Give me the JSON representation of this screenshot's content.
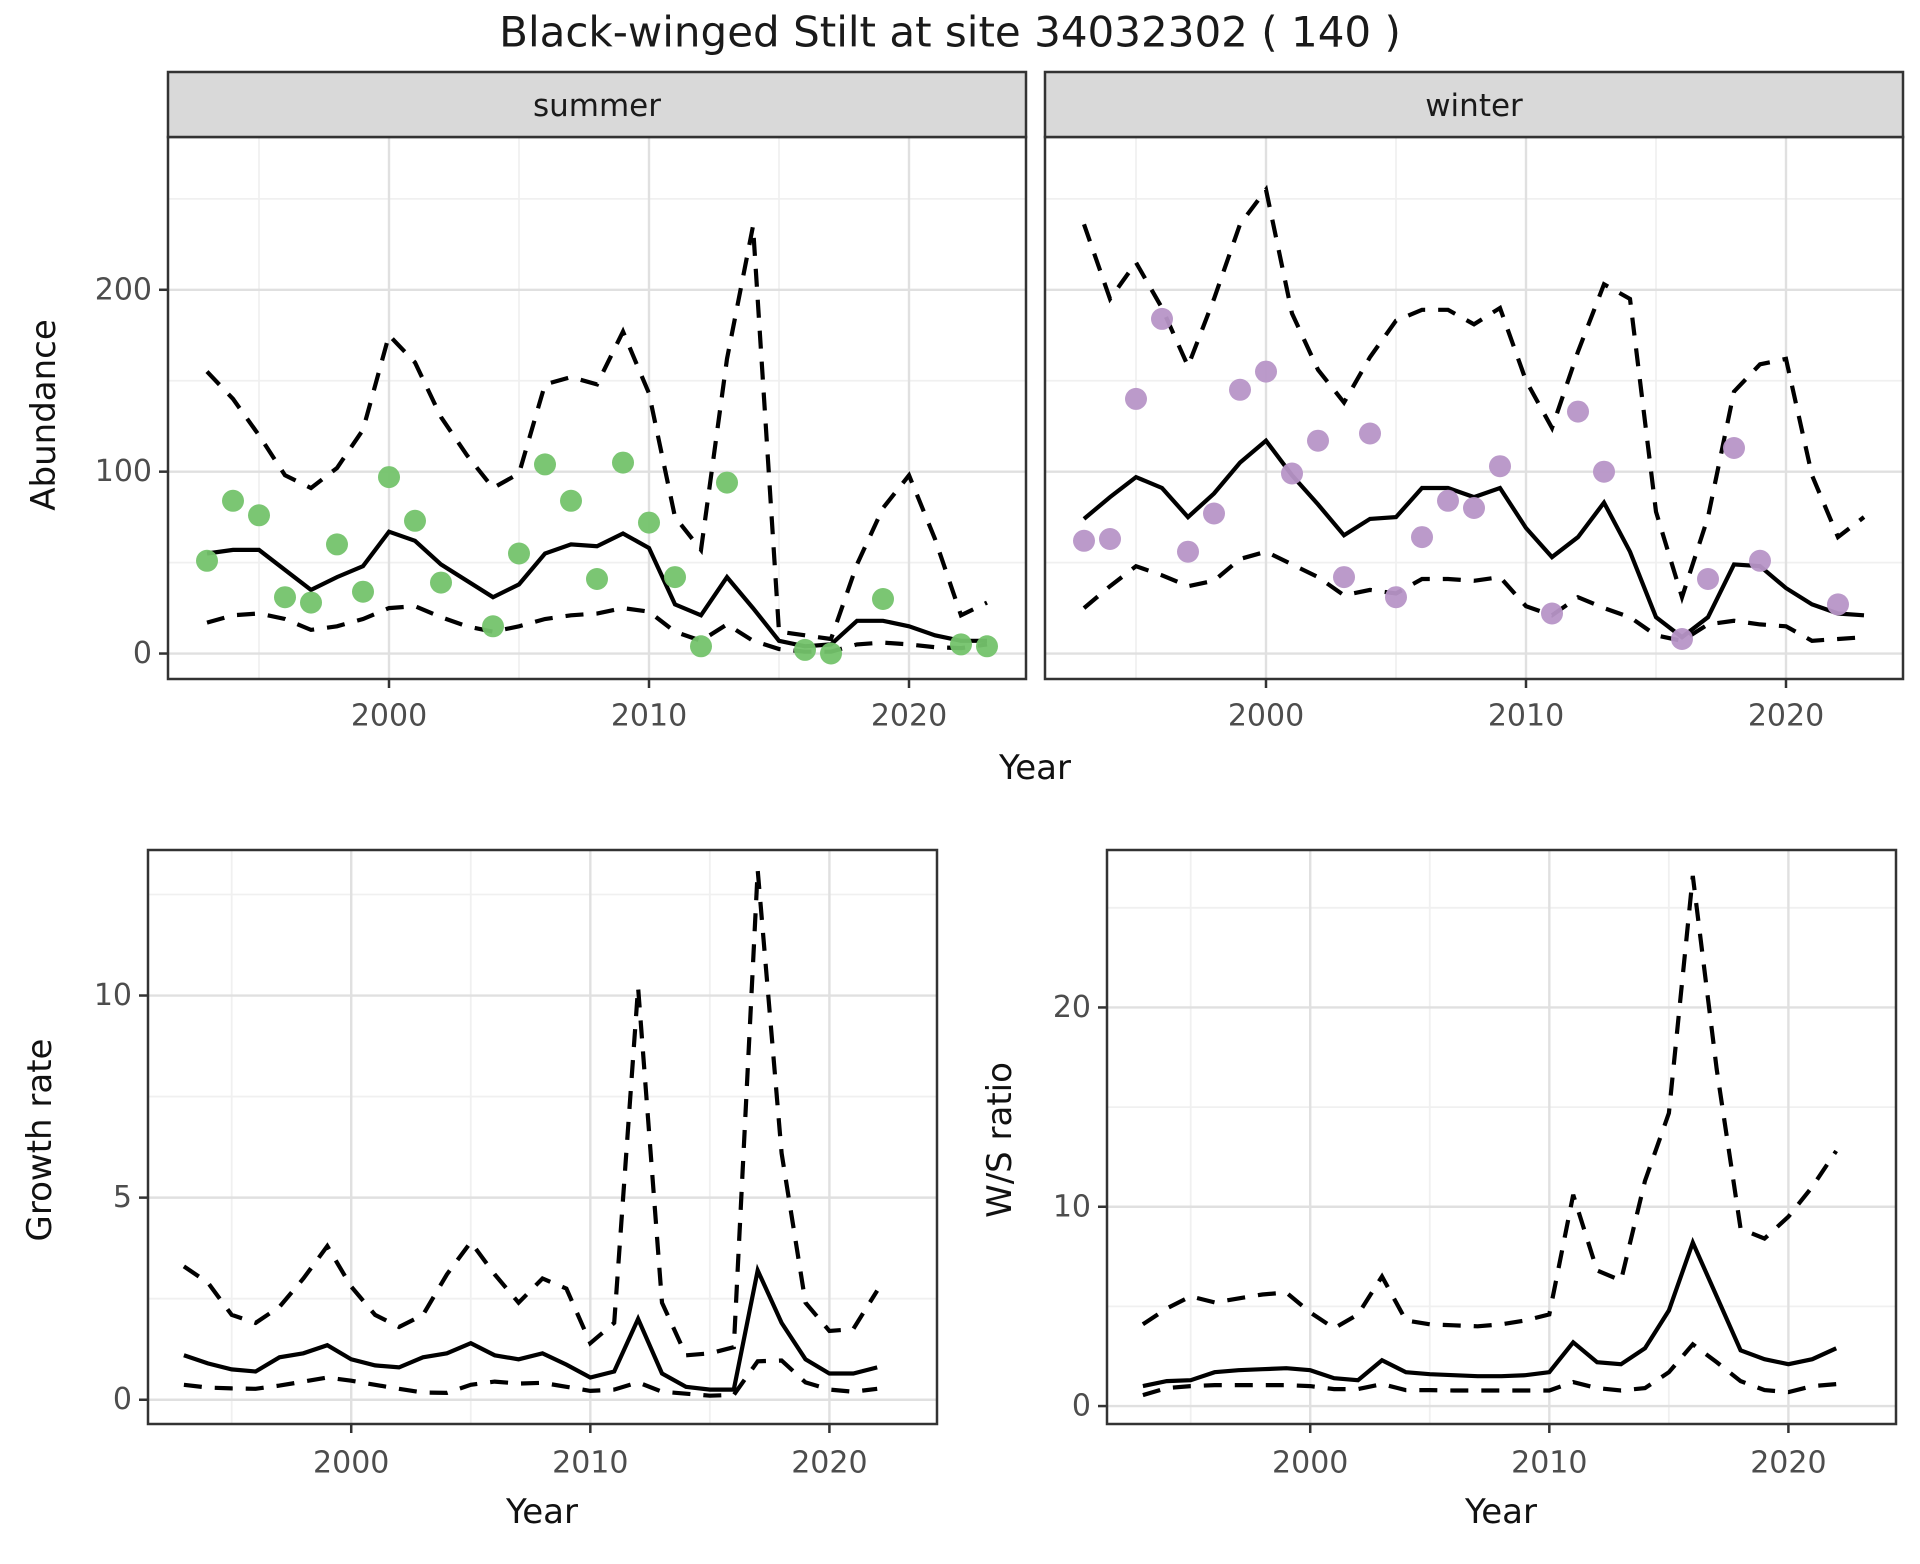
{
  "title": "Black-winged Stilt at site 34032302 ( 140 )",
  "axis_titles": {
    "x": "Year",
    "abundance": "Abundance",
    "growth": "Growth rate",
    "ratio": "W/S ratio"
  },
  "facets": {
    "summer": "summer",
    "winter": "winter"
  },
  "tick_labels": {
    "x": [
      "2000",
      "2010",
      "2020"
    ],
    "abundance": [
      "0",
      "100",
      "200"
    ],
    "growth": [
      "0",
      "5",
      "10"
    ],
    "ratio": [
      "0",
      "10",
      "20"
    ]
  },
  "colors": {
    "summer_points": "#74c36c",
    "winter_points": "#b795c7",
    "line": "#000000",
    "strip_bg": "#d9d9d9",
    "panel_border": "#333333",
    "grid_major": "#e0e0e0",
    "grid_minor": "#f0f0f0",
    "tick_label": "#4d4d4d",
    "background": "#ffffff"
  },
  "chart_data": [
    {
      "type": "line",
      "facet": "summer",
      "xlabel": "Year",
      "ylabel": "Abundance",
      "xlim": [
        1991.5,
        2024.5
      ],
      "ylim": [
        -14,
        284
      ],
      "x_major_ticks": [
        2000,
        2010,
        2020
      ],
      "x_minor_ticks": [
        1995,
        2005,
        2015
      ],
      "y_major_ticks": [
        0,
        100,
        200
      ],
      "y_minor_ticks": [
        50,
        150,
        250
      ],
      "grid": true,
      "legend": "none",
      "years": [
        1993,
        1994,
        1995,
        1996,
        1997,
        1998,
        1999,
        2000,
        2001,
        2002,
        2003,
        2004,
        2005,
        2006,
        2007,
        2008,
        2009,
        2010,
        2011,
        2012,
        2013,
        2014,
        2015,
        2016,
        2017,
        2018,
        2019,
        2020,
        2021,
        2022,
        2023
      ],
      "series": [
        {
          "name": "mean",
          "style": "solid",
          "values": [
            55,
            57,
            57,
            46,
            35,
            42,
            48,
            67,
            62,
            49,
            40,
            31,
            38,
            55,
            60,
            59,
            66,
            58,
            27,
            21,
            42,
            25,
            7,
            4,
            5,
            18,
            18,
            15,
            10,
            7,
            7
          ]
        },
        {
          "name": "upper_ci",
          "style": "dashed",
          "values": [
            155,
            140,
            120,
            98,
            91,
            102,
            123,
            175,
            160,
            130,
            109,
            91,
            99,
            148,
            152,
            148,
            177,
            143,
            75,
            57,
            162,
            235,
            12,
            10,
            8,
            49,
            80,
            98,
            63,
            21,
            28
          ]
        },
        {
          "name": "lower_ci",
          "style": "dashed",
          "values": [
            17,
            21,
            22,
            19,
            13,
            15,
            19,
            25,
            26,
            20,
            15,
            12,
            15,
            19,
            21,
            22,
            25,
            23,
            12,
            7,
            16,
            7,
            2.5,
            1,
            1,
            5,
            6,
            5,
            3.5,
            3,
            5
          ]
        }
      ],
      "observed_points": [
        [
          1993,
          51
        ],
        [
          1994,
          84
        ],
        [
          1995,
          76
        ],
        [
          1996,
          31
        ],
        [
          1997,
          28
        ],
        [
          1998,
          60
        ],
        [
          1999,
          34
        ],
        [
          2000,
          97
        ],
        [
          2001,
          73
        ],
        [
          2002,
          39
        ],
        [
          2004,
          15
        ],
        [
          2005,
          55
        ],
        [
          2006,
          104
        ],
        [
          2007,
          84
        ],
        [
          2008,
          41
        ],
        [
          2009,
          105
        ],
        [
          2010,
          72
        ],
        [
          2011,
          42
        ],
        [
          2012,
          4
        ],
        [
          2013,
          94
        ],
        [
          2016,
          2
        ],
        [
          2017,
          0
        ],
        [
          2019,
          30
        ],
        [
          2022,
          5
        ],
        [
          2023,
          4
        ]
      ]
    },
    {
      "type": "line",
      "facet": "winter",
      "xlabel": "Year",
      "ylabel": "Abundance",
      "xlim": [
        1991.5,
        2024.5
      ],
      "ylim": [
        -14,
        284
      ],
      "x_major_ticks": [
        2000,
        2010,
        2020
      ],
      "x_minor_ticks": [
        1995,
        2005,
        2015
      ],
      "y_major_ticks": [
        0,
        100,
        200
      ],
      "y_minor_ticks": [
        50,
        150,
        250
      ],
      "grid": true,
      "legend": "none",
      "years": [
        1993,
        1994,
        1995,
        1996,
        1997,
        1998,
        1999,
        2000,
        2001,
        2002,
        2003,
        2004,
        2005,
        2006,
        2007,
        2008,
        2009,
        2010,
        2011,
        2012,
        2013,
        2014,
        2015,
        2016,
        2017,
        2018,
        2019,
        2020,
        2021,
        2022,
        2023
      ],
      "series": [
        {
          "name": "mean",
          "style": "solid",
          "values": [
            74,
            86,
            97,
            91,
            75,
            88,
            105,
            117,
            98,
            82,
            65,
            74,
            75,
            91,
            91,
            86,
            91,
            69,
            53,
            64,
            83,
            56,
            20,
            9,
            20,
            49,
            48,
            36,
            27,
            22,
            21
          ]
        },
        {
          "name": "upper_ci",
          "style": "dashed",
          "values": [
            236,
            195,
            215,
            190,
            158,
            195,
            236,
            255,
            187,
            156,
            138,
            163,
            183,
            189,
            189,
            181,
            190,
            150,
            124,
            166,
            203,
            195,
            78,
            31,
            75,
            144,
            159,
            162,
            98,
            64,
            75
          ]
        },
        {
          "name": "lower_ci",
          "style": "dashed",
          "values": [
            25,
            37,
            48,
            43,
            37,
            40,
            52,
            56,
            49,
            42,
            32,
            35,
            33,
            41,
            41,
            40,
            42,
            26,
            21,
            31,
            25,
            20,
            10,
            7,
            16,
            18,
            16,
            15,
            7,
            8,
            9
          ]
        }
      ],
      "observed_points": [
        [
          1993,
          62
        ],
        [
          1994,
          63
        ],
        [
          1995,
          140
        ],
        [
          1996,
          184
        ],
        [
          1997,
          56
        ],
        [
          1998,
          77
        ],
        [
          1999,
          145
        ],
        [
          2000,
          155
        ],
        [
          2001,
          99
        ],
        [
          2002,
          117
        ],
        [
          2003,
          42
        ],
        [
          2004,
          121
        ],
        [
          2005,
          31
        ],
        [
          2006,
          64
        ],
        [
          2007,
          84
        ],
        [
          2008,
          80
        ],
        [
          2009,
          103
        ],
        [
          2011,
          22
        ],
        [
          2012,
          133
        ],
        [
          2013,
          100
        ],
        [
          2016,
          8
        ],
        [
          2017,
          41
        ],
        [
          2018,
          113
        ],
        [
          2019,
          51
        ],
        [
          2022,
          27
        ]
      ]
    },
    {
      "type": "line",
      "facet": null,
      "xlabel": "Year",
      "ylabel": "Growth rate",
      "xlim": [
        1991.5,
        2024.5
      ],
      "ylim": [
        -0.6,
        13.6
      ],
      "x_major_ticks": [
        2000,
        2010,
        2020
      ],
      "x_minor_ticks": [
        1995,
        2005,
        2015
      ],
      "y_major_ticks": [
        0,
        5,
        10
      ],
      "y_minor_ticks": [
        2.5,
        7.5,
        12.5
      ],
      "grid": true,
      "legend": "none",
      "years": [
        1993,
        1994,
        1995,
        1996,
        1997,
        1998,
        1999,
        2000,
        2001,
        2002,
        2003,
        2004,
        2005,
        2006,
        2007,
        2008,
        2009,
        2010,
        2011,
        2012,
        2013,
        2014,
        2015,
        2016,
        2017,
        2018,
        2019,
        2020,
        2021,
        2022
      ],
      "series": [
        {
          "name": "mean",
          "style": "solid",
          "values": [
            1.1,
            0.9,
            0.75,
            0.7,
            1.05,
            1.15,
            1.35,
            1.0,
            0.85,
            0.8,
            1.05,
            1.15,
            1.4,
            1.1,
            1.0,
            1.15,
            0.87,
            0.55,
            0.7,
            2.0,
            0.65,
            0.32,
            0.25,
            0.25,
            3.2,
            1.9,
            1.0,
            0.65,
            0.65,
            0.8
          ]
        },
        {
          "name": "upper_ci",
          "style": "dashed",
          "values": [
            3.3,
            2.9,
            2.1,
            1.9,
            2.3,
            3.0,
            3.8,
            2.8,
            2.1,
            1.8,
            2.1,
            3.1,
            3.9,
            3.1,
            2.4,
            3.0,
            2.75,
            1.4,
            1.9,
            10.2,
            2.4,
            1.1,
            1.15,
            1.3,
            13.1,
            6.1,
            2.4,
            1.7,
            1.75,
            2.7
          ]
        },
        {
          "name": "lower_ci",
          "style": "dashed",
          "values": [
            0.37,
            0.3,
            0.28,
            0.27,
            0.35,
            0.45,
            0.55,
            0.47,
            0.37,
            0.27,
            0.18,
            0.17,
            0.37,
            0.45,
            0.4,
            0.42,
            0.32,
            0.22,
            0.25,
            0.43,
            0.2,
            0.15,
            0.1,
            0.12,
            0.95,
            0.97,
            0.43,
            0.25,
            0.2,
            0.27
          ]
        }
      ],
      "observed_points": []
    },
    {
      "type": "line",
      "facet": null,
      "xlabel": "Year",
      "ylabel": "W/S ratio",
      "xlim": [
        1991.5,
        2024.5
      ],
      "ylim": [
        -0.9,
        27.9
      ],
      "x_major_ticks": [
        2000,
        2010,
        2020
      ],
      "x_minor_ticks": [
        1995,
        2005,
        2015
      ],
      "y_major_ticks": [
        0,
        10,
        20
      ],
      "y_minor_ticks": [
        5,
        15,
        25
      ],
      "grid": true,
      "legend": "none",
      "years": [
        1993,
        1994,
        1995,
        1996,
        1997,
        1998,
        1999,
        2000,
        2001,
        2002,
        2003,
        2004,
        2005,
        2006,
        2007,
        2008,
        2009,
        2010,
        2011,
        2012,
        2013,
        2014,
        2015,
        2016,
        2017,
        2018,
        2019,
        2020,
        2021,
        2022
      ],
      "series": [
        {
          "name": "mean",
          "style": "solid",
          "values": [
            1.0,
            1.25,
            1.3,
            1.7,
            1.8,
            1.85,
            1.9,
            1.8,
            1.4,
            1.3,
            2.3,
            1.7,
            1.6,
            1.55,
            1.5,
            1.5,
            1.55,
            1.7,
            3.2,
            2.2,
            2.1,
            2.9,
            4.8,
            8.2,
            5.5,
            2.8,
            2.35,
            2.1,
            2.35,
            2.9
          ]
        },
        {
          "name": "upper_ci",
          "style": "dashed",
          "values": [
            4.1,
            4.9,
            5.5,
            5.2,
            5.4,
            5.6,
            5.7,
            4.7,
            3.9,
            4.6,
            6.5,
            4.3,
            4.1,
            4.05,
            4.0,
            4.1,
            4.3,
            4.6,
            10.6,
            6.8,
            6.3,
            11.3,
            14.7,
            26.6,
            16.9,
            8.9,
            8.4,
            9.5,
            11.0,
            12.8
          ]
        },
        {
          "name": "lower_ci",
          "style": "dashed",
          "values": [
            0.55,
            0.9,
            1.0,
            1.05,
            1.05,
            1.05,
            1.05,
            1.0,
            0.85,
            0.85,
            1.1,
            0.8,
            0.8,
            0.78,
            0.78,
            0.78,
            0.78,
            0.78,
            1.2,
            0.9,
            0.78,
            0.9,
            1.7,
            3.1,
            2.2,
            1.25,
            0.8,
            0.7,
            1.0,
            1.1
          ]
        }
      ],
      "observed_points": []
    }
  ]
}
